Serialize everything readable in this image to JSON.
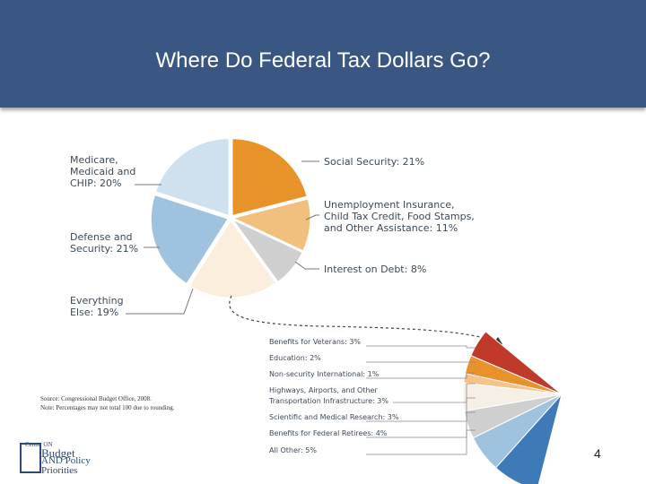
{
  "header": {
    "title": "Where Do Federal Tax Dollars Go?"
  },
  "chart_data": {
    "type": "pie",
    "slices": [
      {
        "label": "Social Security: 21%",
        "value": 21,
        "color": "#e8922a"
      },
      {
        "label": "Unemployment Insurance, Child Tax Credit, Food Stamps, and Other Assistance: 11%",
        "value": 11,
        "color": "#f2c07e"
      },
      {
        "label": "Interest on Debt: 8%",
        "value": 8,
        "color": "#cfcfcf"
      },
      {
        "label": "Everything Else: 19%",
        "value": 19,
        "color": "#fbeedd"
      },
      {
        "label": "Defense and Security: 21%",
        "value": 21,
        "color": "#9fc2de"
      },
      {
        "label": "Medicare, Medicaid and CHIP: 20%",
        "value": 20,
        "color": "#cfe0ef"
      }
    ],
    "breakdown": {
      "of": "Everything Else: 19%",
      "items": [
        {
          "label": "Benefits for Veterans: 3%",
          "value": 3,
          "color": "#c0392b"
        },
        {
          "label": "Education: 2%",
          "value": 2,
          "color": "#e8922a"
        },
        {
          "label": "Non-security International: 1%",
          "value": 1,
          "color": "#f5c38a"
        },
        {
          "label": "Highways, Airports, and Other Transportation Infrastructure: 3%",
          "value": 3,
          "color": "#f6efe6"
        },
        {
          "label": "Scientific and Medical Research: 3%",
          "value": 3,
          "color": "#cfcfcf"
        },
        {
          "label": "Benefits for Federal Retirees: 4%",
          "value": 4,
          "color": "#9fc2de"
        },
        {
          "label": "All Other: 5%",
          "value": 5,
          "color": "#3f7ab8"
        }
      ]
    }
  },
  "labels": {
    "medicare": [
      "Medicare,",
      "Medicaid and",
      "CHIP: 20%"
    ],
    "defense": [
      "Defense and",
      "Security: 21%"
    ],
    "everything": [
      "Everything",
      "Else: 19%"
    ],
    "social": [
      "Social Security: 21%"
    ],
    "unemployment": [
      "Unemployment Insurance,",
      "Child Tax Credit, Food Stamps,",
      "and Other Assistance: 11%"
    ],
    "interest": [
      "Interest on Debt: 8%"
    ],
    "breakdown": [
      [
        "Benefits for Veterans: 3%"
      ],
      [
        "Education: 2%"
      ],
      [
        "Non-security International: 1%"
      ],
      [
        "Highways, Airports, and Other",
        "Transportation Infrastructure: 3%"
      ],
      [
        "Scientific and Medical Research: 3%"
      ],
      [
        "Benefits for Federal Retirees: 4%"
      ],
      [
        "All Other: 5%"
      ]
    ]
  },
  "source": {
    "line1": "Source: Congressional Budget Office, 2008.",
    "line2": "Note: Percentages may not total 100 due to rounding."
  },
  "logo": {
    "line1": "Center ON",
    "line2": "Budget",
    "line3": "AND Policy",
    "line4": "Priorities"
  },
  "page_number": "4"
}
